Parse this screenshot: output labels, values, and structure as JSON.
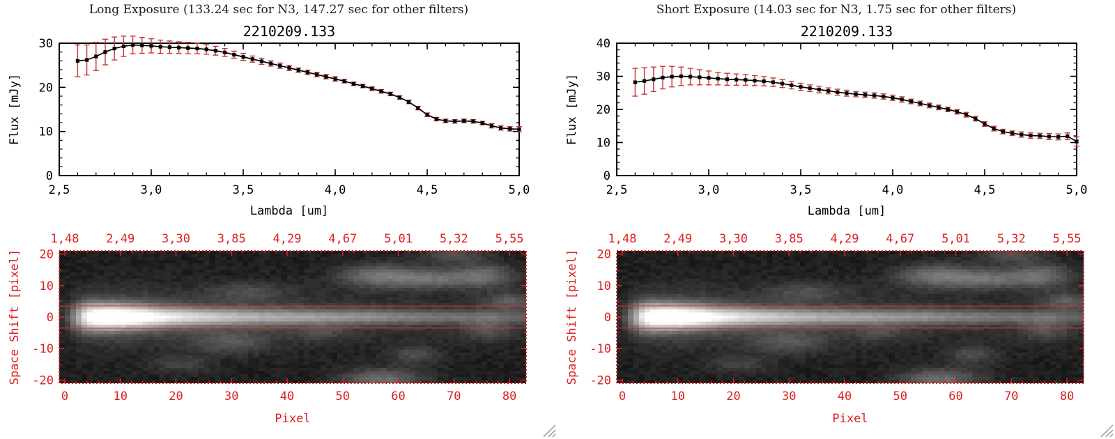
{
  "window": {
    "background": "#ffffff"
  },
  "colors": {
    "plot_axis": "#000000",
    "trace_line": "#000000",
    "marker": "#000000",
    "error_bar": "#cc3333",
    "image_axis": "#dd2020",
    "extraction_line": "#e03030",
    "header_text": "#1b1b1b"
  },
  "chart_data": [
    {
      "header": "Long Exposure (133.24 sec for N3, 147.27 sec for other filters)",
      "spectrum": {
        "type": "line",
        "title": "2210209.133",
        "xlabel": "Lambda [um]",
        "ylabel": "Flux [mJy]",
        "xlim": [
          2.5,
          5.0
        ],
        "ylim": [
          0,
          30
        ],
        "xticks": [
          2.5,
          3.0,
          3.5,
          4.0,
          4.5,
          5.0
        ],
        "xtick_labels": [
          "2,5",
          "3,0",
          "3,5",
          "4,0",
          "4,5",
          "5,0"
        ],
        "xminor_step": 0.1,
        "yticks": [
          0,
          10,
          20,
          30
        ],
        "ytick_labels": [
          "0",
          "10",
          "20",
          "30"
        ],
        "yminor_step": 2,
        "x": [
          2.6,
          2.65,
          2.7,
          2.75,
          2.8,
          2.85,
          2.9,
          2.95,
          3.0,
          3.05,
          3.1,
          3.15,
          3.2,
          3.25,
          3.3,
          3.35,
          3.4,
          3.45,
          3.5,
          3.55,
          3.6,
          3.65,
          3.7,
          3.75,
          3.8,
          3.85,
          3.9,
          3.95,
          4.0,
          4.05,
          4.1,
          4.15,
          4.2,
          4.25,
          4.3,
          4.35,
          4.4,
          4.45,
          4.5,
          4.55,
          4.6,
          4.65,
          4.7,
          4.75,
          4.8,
          4.85,
          4.9,
          4.95,
          5.0
        ],
        "y": [
          26.0,
          26.2,
          27.0,
          28.0,
          28.8,
          29.3,
          29.6,
          29.5,
          29.4,
          29.2,
          29.1,
          29.0,
          28.9,
          28.8,
          28.6,
          28.3,
          27.9,
          27.4,
          26.9,
          26.4,
          25.9,
          25.4,
          24.9,
          24.4,
          23.9,
          23.4,
          22.9,
          22.4,
          21.9,
          21.4,
          20.8,
          20.3,
          19.7,
          19.1,
          18.5,
          17.7,
          16.7,
          15.3,
          13.8,
          12.8,
          12.4,
          12.3,
          12.4,
          12.3,
          11.9,
          11.3,
          10.8,
          10.6,
          10.5
        ],
        "yerr": [
          3.6,
          3.4,
          3.2,
          2.9,
          2.6,
          2.3,
          2.0,
          1.8,
          1.6,
          1.5,
          1.4,
          1.3,
          1.3,
          1.2,
          1.1,
          1.0,
          0.9,
          0.8,
          0.8,
          0.7,
          0.7,
          0.6,
          0.6,
          0.6,
          0.5,
          0.5,
          0.5,
          0.5,
          0.5,
          0.4,
          0.4,
          0.4,
          0.4,
          0.4,
          0.4,
          0.4,
          0.4,
          0.4,
          0.4,
          0.4,
          0.4,
          0.4,
          0.4,
          0.4,
          0.4,
          0.5,
          0.5,
          0.5,
          0.6
        ]
      },
      "image": {
        "type": "heatmap",
        "xlabel": "Pixel",
        "ylabel": "Space Shift [pixel]",
        "xlim": [
          -1,
          83
        ],
        "ylim": [
          -21,
          21
        ],
        "xticks": [
          0,
          10,
          20,
          30,
          40,
          50,
          60,
          70,
          80
        ],
        "xtick_labels": [
          "0",
          "10",
          "20",
          "30",
          "40",
          "50",
          "60",
          "70",
          "80"
        ],
        "top_tick_labels": [
          "1,48",
          "2,49",
          "3,30",
          "3,85",
          "4,29",
          "4,67",
          "5,01",
          "5,32",
          "5,55"
        ],
        "xminor_step": 2,
        "yticks": [
          -20,
          -10,
          0,
          10,
          20
        ],
        "ytick_labels": [
          "-20",
          "-10",
          "0",
          "10",
          "20"
        ],
        "yminor_step": 5,
        "extraction_lines_y": [
          3.5,
          -3.5
        ],
        "background": 0.06,
        "noise_amp": 0.05,
        "trace": {
          "x": [
            0,
            2,
            4,
            6,
            8,
            10,
            14,
            18,
            22,
            26,
            30,
            35,
            40,
            45,
            50,
            55,
            60,
            65,
            70,
            75,
            80,
            83
          ],
          "amp": [
            0.05,
            0.35,
            0.8,
            0.97,
            1.0,
            1.0,
            0.9,
            0.75,
            0.65,
            0.58,
            0.52,
            0.47,
            0.43,
            0.4,
            0.37,
            0.34,
            0.3,
            0.27,
            0.24,
            0.22,
            0.2,
            0.18
          ],
          "sigma": [
            2.8,
            2.8,
            2.7,
            2.6,
            2.5,
            2.4,
            2.2,
            2.0,
            1.9,
            1.8,
            1.8,
            1.7,
            1.7,
            1.6,
            1.6,
            1.6,
            1.5,
            1.5,
            1.5,
            1.5,
            1.5,
            1.5
          ],
          "halo_frac": 0.22,
          "halo_sigma": 5.5
        },
        "blobs": [
          {
            "x": 57,
            "y": 13,
            "rx": 5,
            "ry": 2.5,
            "amp": 0.3
          },
          {
            "x": 66,
            "y": 12,
            "rx": 4,
            "ry": 2.0,
            "amp": 0.22
          },
          {
            "x": 75,
            "y": 13,
            "rx": 4,
            "ry": 2.5,
            "amp": 0.28
          },
          {
            "x": 80,
            "y": 5,
            "rx": 3,
            "ry": 2.0,
            "amp": 0.18
          },
          {
            "x": 33,
            "y": 8,
            "rx": 5,
            "ry": 2.0,
            "amp": 0.12
          },
          {
            "x": 30,
            "y": -8,
            "rx": 5,
            "ry": 2.5,
            "amp": 0.15
          },
          {
            "x": 46,
            "y": -5,
            "rx": 3,
            "ry": 2.0,
            "amp": 0.1
          },
          {
            "x": 57,
            "y": -20,
            "rx": 5,
            "ry": 2.5,
            "amp": 0.26
          },
          {
            "x": 63,
            "y": -12,
            "rx": 3,
            "ry": 2.0,
            "amp": 0.14
          },
          {
            "x": 21,
            "y": -15,
            "rx": 4,
            "ry": 2.0,
            "amp": 0.1
          },
          {
            "x": 76,
            "y": -4,
            "rx": 3,
            "ry": 2.5,
            "amp": 0.14
          },
          {
            "x": 70,
            "y": 20,
            "rx": 4,
            "ry": 2.0,
            "amp": 0.16
          }
        ]
      }
    },
    {
      "header": "Short Exposure (14.03 sec for N3, 1.75 sec for other filters)",
      "spectrum": {
        "type": "line",
        "title": "2210209.133",
        "xlabel": "Lambda [um]",
        "ylabel": "Flux [mJy]",
        "xlim": [
          2.5,
          5.0
        ],
        "ylim": [
          0,
          40
        ],
        "xticks": [
          2.5,
          3.0,
          3.5,
          4.0,
          4.5,
          5.0
        ],
        "xtick_labels": [
          "2,5",
          "3,0",
          "3,5",
          "4,0",
          "4,5",
          "5,0"
        ],
        "xminor_step": 0.1,
        "yticks": [
          0,
          10,
          20,
          30,
          40
        ],
        "ytick_labels": [
          "0",
          "10",
          "20",
          "30",
          "40"
        ],
        "yminor_step": 2,
        "x": [
          2.6,
          2.65,
          2.7,
          2.75,
          2.8,
          2.85,
          2.9,
          2.95,
          3.0,
          3.05,
          3.1,
          3.15,
          3.2,
          3.25,
          3.3,
          3.35,
          3.4,
          3.45,
          3.5,
          3.55,
          3.6,
          3.65,
          3.7,
          3.75,
          3.8,
          3.85,
          3.9,
          3.95,
          4.0,
          4.05,
          4.1,
          4.15,
          4.2,
          4.25,
          4.3,
          4.35,
          4.4,
          4.45,
          4.5,
          4.55,
          4.6,
          4.65,
          4.7,
          4.75,
          4.8,
          4.85,
          4.9,
          4.95,
          5.0
        ],
        "y": [
          28.2,
          28.6,
          29.1,
          29.6,
          29.9,
          30.0,
          29.9,
          29.7,
          29.5,
          29.3,
          29.1,
          29.0,
          28.9,
          28.7,
          28.5,
          28.2,
          27.8,
          27.3,
          26.8,
          26.4,
          26.0,
          25.6,
          25.2,
          24.9,
          24.6,
          24.4,
          24.2,
          23.9,
          23.5,
          23.0,
          22.4,
          21.8,
          21.2,
          20.6,
          20.0,
          19.3,
          18.4,
          17.2,
          15.6,
          14.2,
          13.3,
          12.8,
          12.4,
          12.1,
          12.0,
          11.8,
          11.7,
          11.9,
          10.3
        ],
        "yerr": [
          4.2,
          4.0,
          3.7,
          3.4,
          3.1,
          2.8,
          2.5,
          2.3,
          2.1,
          1.9,
          1.8,
          1.7,
          1.6,
          1.5,
          1.4,
          1.3,
          1.2,
          1.1,
          1.1,
          1.0,
          1.0,
          0.9,
          0.9,
          0.9,
          0.8,
          0.8,
          0.8,
          0.8,
          0.8,
          0.8,
          0.7,
          0.7,
          0.7,
          0.7,
          0.7,
          0.7,
          0.7,
          0.7,
          0.7,
          0.7,
          0.7,
          0.7,
          0.8,
          0.8,
          0.8,
          0.9,
          0.9,
          1.0,
          1.4
        ]
      },
      "image": {
        "type": "heatmap",
        "xlabel": "Pixel",
        "ylabel": "Space Shift [pixel]",
        "xlim": [
          -1,
          83
        ],
        "ylim": [
          -21,
          21
        ],
        "xticks": [
          0,
          10,
          20,
          30,
          40,
          50,
          60,
          70,
          80
        ],
        "xtick_labels": [
          "0",
          "10",
          "20",
          "30",
          "40",
          "50",
          "60",
          "70",
          "80"
        ],
        "top_tick_labels": [
          "1,48",
          "2,49",
          "3,30",
          "3,85",
          "4,29",
          "4,67",
          "5,01",
          "5,32",
          "5,55"
        ],
        "xminor_step": 2,
        "yticks": [
          -20,
          -10,
          0,
          10,
          20
        ],
        "ytick_labels": [
          "-20",
          "-10",
          "0",
          "10",
          "20"
        ],
        "yminor_step": 5,
        "extraction_lines_y": [
          3.5,
          -3.5
        ],
        "background": 0.06,
        "noise_amp": 0.05,
        "trace": {
          "x": [
            0,
            2,
            4,
            6,
            8,
            10,
            14,
            18,
            22,
            26,
            30,
            35,
            40,
            45,
            50,
            55,
            60,
            65,
            70,
            75,
            80,
            83
          ],
          "amp": [
            0.05,
            0.35,
            0.8,
            0.97,
            1.0,
            1.0,
            0.9,
            0.75,
            0.65,
            0.58,
            0.52,
            0.47,
            0.43,
            0.4,
            0.37,
            0.34,
            0.3,
            0.27,
            0.24,
            0.22,
            0.2,
            0.18
          ],
          "sigma": [
            2.8,
            2.8,
            2.7,
            2.6,
            2.5,
            2.4,
            2.2,
            2.0,
            1.9,
            1.8,
            1.8,
            1.7,
            1.7,
            1.6,
            1.6,
            1.6,
            1.5,
            1.5,
            1.5,
            1.5,
            1.5,
            1.5
          ],
          "halo_frac": 0.22,
          "halo_sigma": 5.5
        },
        "blobs": [
          {
            "x": 57,
            "y": 13,
            "rx": 5,
            "ry": 2.5,
            "amp": 0.3
          },
          {
            "x": 66,
            "y": 12,
            "rx": 4,
            "ry": 2.0,
            "amp": 0.22
          },
          {
            "x": 75,
            "y": 13,
            "rx": 4,
            "ry": 2.5,
            "amp": 0.28
          },
          {
            "x": 80,
            "y": 5,
            "rx": 3,
            "ry": 2.0,
            "amp": 0.18
          },
          {
            "x": 33,
            "y": 8,
            "rx": 5,
            "ry": 2.0,
            "amp": 0.12
          },
          {
            "x": 30,
            "y": -8,
            "rx": 5,
            "ry": 2.5,
            "amp": 0.15
          },
          {
            "x": 46,
            "y": -5,
            "rx": 3,
            "ry": 2.0,
            "amp": 0.1
          },
          {
            "x": 57,
            "y": -20,
            "rx": 5,
            "ry": 2.5,
            "amp": 0.26
          },
          {
            "x": 63,
            "y": -12,
            "rx": 3,
            "ry": 2.0,
            "amp": 0.14
          },
          {
            "x": 21,
            "y": -15,
            "rx": 4,
            "ry": 2.0,
            "amp": 0.1
          },
          {
            "x": 76,
            "y": -4,
            "rx": 3,
            "ry": 2.5,
            "amp": 0.14
          },
          {
            "x": 70,
            "y": 20,
            "rx": 4,
            "ry": 2.0,
            "amp": 0.16
          }
        ]
      }
    }
  ]
}
